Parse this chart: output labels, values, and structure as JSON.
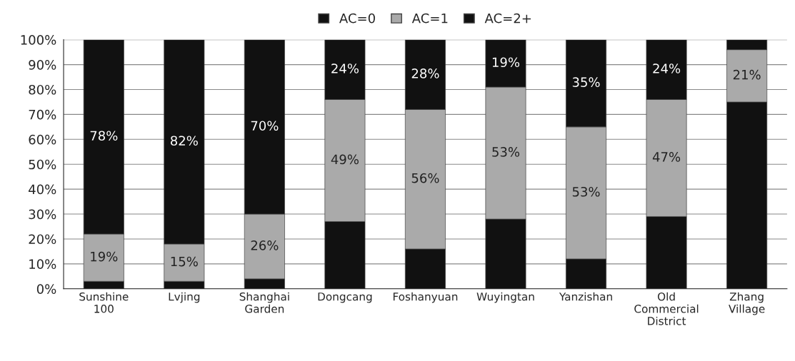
{
  "chart_data": {
    "type": "bar",
    "stacked": true,
    "categories": [
      "Sunshine\n100",
      "Lvjing",
      "Shanghai\nGarden",
      "Dongcang",
      "Foshanyuan",
      "Wuyingtan",
      "Yanzishan",
      "Old\nCommercial\nDistrict",
      "Zhang\nVillage"
    ],
    "series": [
      {
        "name": "AC=0",
        "color": "#111111",
        "values": [
          3,
          3,
          4,
          27,
          16,
          28,
          12,
          29,
          75
        ]
      },
      {
        "name": "AC=1",
        "color": "#aaaaaa",
        "values": [
          19,
          15,
          26,
          49,
          56,
          53,
          53,
          47,
          21
        ],
        "value_labels": [
          "19%",
          "15%",
          "26%",
          "49%",
          "56%",
          "53%",
          "53%",
          "47%",
          "21%"
        ]
      },
      {
        "name": "AC=2+",
        "color": "#111111",
        "values": [
          78,
          82,
          70,
          24,
          28,
          19,
          35,
          24,
          4
        ],
        "value_labels": [
          "78%",
          "82%",
          "70%",
          "24%",
          "28%",
          "19%",
          "35%",
          "24%",
          null
        ]
      }
    ],
    "ylim": [
      0,
      100
    ],
    "yticks": [
      {
        "value": 0,
        "label": "0%"
      },
      {
        "value": 10,
        "label": "10%"
      },
      {
        "value": 20,
        "label": "20%"
      },
      {
        "value": 30,
        "label": "30%"
      },
      {
        "value": 40,
        "label": "40%"
      },
      {
        "value": 50,
        "label": "50%"
      },
      {
        "value": 60,
        "label": "60%"
      },
      {
        "value": 70,
        "label": "70%"
      },
      {
        "value": 80,
        "label": "80%"
      },
      {
        "value": 90,
        "label": "90%"
      },
      {
        "value": 100,
        "label": "100%"
      }
    ],
    "grid": "y",
    "legend": "top"
  }
}
